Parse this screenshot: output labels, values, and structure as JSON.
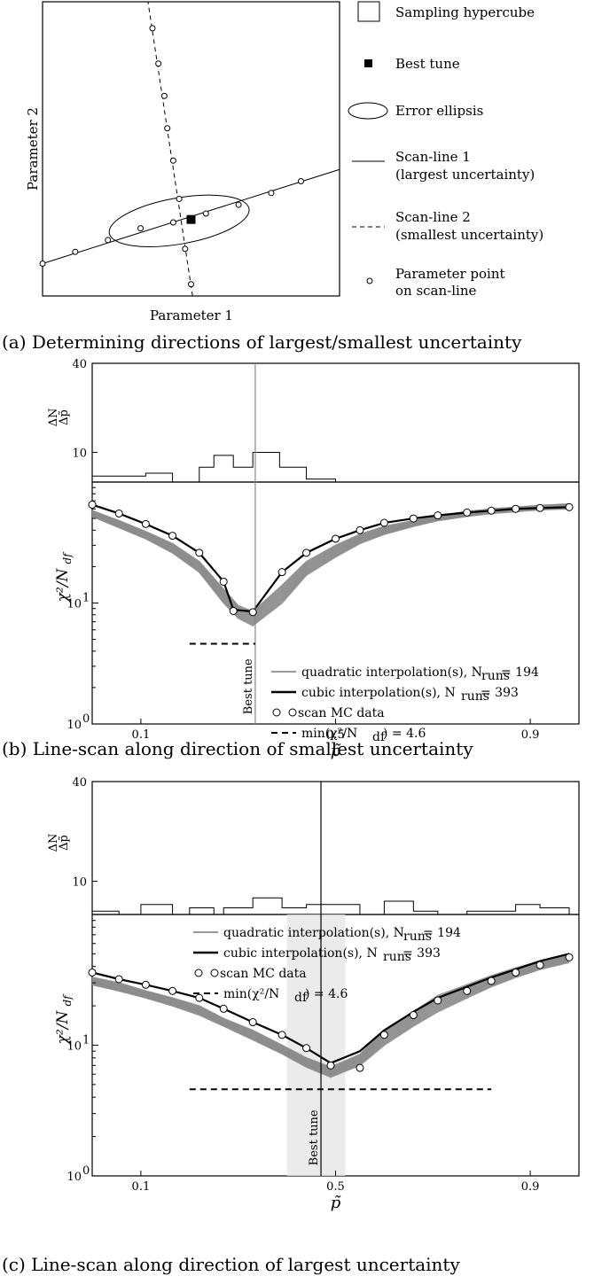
{
  "panel_a": {
    "caption": "(a) Determining directions of largest/smallest uncertainty",
    "xlabel": "Parameter 1",
    "ylabel": "Parameter 2",
    "legend": {
      "hypercube": "Sampling hypercube",
      "best_tune": "Best tune",
      "ellipse": "Error ellipsis",
      "scan1_l1": "Scan-line 1",
      "scan1_l2": "(largest uncertainty)",
      "scan2_l1": "Scan-line 2",
      "scan2_l2": "(smallest uncertainty)",
      "point_l1": "Parameter point",
      "point_l2": "on scan-line"
    }
  },
  "panel_b": {
    "caption": "(b) Line-scan along direction of smallest uncertainty",
    "best_tune_label": "Best tune",
    "hist_ylabel": "ΔN/Δp̃",
    "legend": {
      "quad": "quadratic interpolation(s), N",
      "quad_sub": "runs",
      "quad_val": " = 194",
      "cubic": "cubic interpolation(s), N",
      "cubic_sub": "runs",
      "cubic_val": " = 393",
      "data": "scan MC data",
      "min": "min(χ²/N",
      "min_sub": "df",
      "min_val": ") = 4.6"
    }
  },
  "panel_c": {
    "caption": "(c) Line-scan along direction of largest uncertainty",
    "best_tune_label": "Best tune",
    "legend": {
      "quad": "quadratic interpolation(s), N",
      "quad_sub": "runs",
      "quad_val": " = 194",
      "cubic": "cubic interpolation(s), N",
      "cubic_sub": "runs",
      "cubic_val": " = 393",
      "data": "scan MC data",
      "min": "min(χ²/N",
      "min_sub": "df",
      "min_val": ") = 4.6"
    }
  },
  "chart_data": [
    {
      "type": "scatter",
      "panel": "a",
      "xlabel": "Parameter 1",
      "ylabel": "Parameter 2",
      "best_tune": [
        0.5,
        0.26
      ],
      "scan_line_1_points": [
        [
          0.0,
          0.11
        ],
        [
          0.11,
          0.15
        ],
        [
          0.22,
          0.19
        ],
        [
          0.33,
          0.23
        ],
        [
          0.44,
          0.25
        ],
        [
          0.55,
          0.28
        ],
        [
          0.66,
          0.31
        ],
        [
          0.77,
          0.35
        ],
        [
          0.87,
          0.39
        ]
      ],
      "scan_line_2_points": [
        [
          0.5,
          0.04
        ],
        [
          0.48,
          0.16
        ],
        [
          0.46,
          0.33
        ],
        [
          0.44,
          0.46
        ],
        [
          0.42,
          0.57
        ],
        [
          0.41,
          0.68
        ],
        [
          0.39,
          0.79
        ],
        [
          0.37,
          0.91
        ]
      ]
    },
    {
      "type": "line",
      "panel": "b",
      "xlabel": "p̃",
      "ylabel": "χ²/N_df",
      "y_scale": "log",
      "xlim": [
        0.0,
        1.0
      ],
      "ylim": [
        1,
        100
      ],
      "x_ticks": [
        "0.1",
        "0.5",
        "0.9"
      ],
      "y_ticks": [
        "10⁰",
        "10¹"
      ],
      "best_tune_x": 0.335,
      "min_chi2": 4.6,
      "min_line_x": [
        0.2,
        0.335
      ],
      "scan_mc_data": {
        "x": [
          0.0,
          0.055,
          0.11,
          0.165,
          0.22,
          0.27,
          0.29,
          0.33,
          0.39,
          0.44,
          0.5,
          0.55,
          0.6,
          0.66,
          0.71,
          0.77,
          0.82,
          0.87,
          0.92,
          0.98
        ],
        "y": [
          65,
          55,
          45,
          36,
          26,
          15,
          8.6,
          8.4,
          18,
          26,
          34,
          40,
          46,
          50,
          53,
          56,
          58,
          60,
          61,
          62
        ]
      },
      "cubic": {
        "x": [
          0.0,
          0.055,
          0.11,
          0.165,
          0.22,
          0.27,
          0.29,
          0.33,
          0.39,
          0.44,
          0.5,
          0.55,
          0.6,
          0.66,
          0.71,
          0.77,
          0.82,
          0.87,
          0.92,
          0.98
        ],
        "y": [
          65,
          55,
          45,
          36,
          26,
          15,
          8.8,
          8.5,
          18,
          26,
          34,
          40,
          46,
          50,
          53,
          56,
          58,
          60,
          61,
          62
        ]
      },
      "quadratic_band": {
        "x": [
          0.0,
          0.055,
          0.11,
          0.165,
          0.22,
          0.27,
          0.3,
          0.33,
          0.39,
          0.44,
          0.5,
          0.55,
          0.6,
          0.66,
          0.71,
          0.77,
          0.82,
          0.87,
          0.92,
          0.98
        ],
        "y_low": [
          52,
          42,
          34,
          26,
          18,
          10,
          7.5,
          6.5,
          10,
          17,
          24,
          31,
          37,
          43,
          48,
          52,
          55,
          57,
          59,
          60
        ],
        "y_high": [
          58,
          48,
          39,
          31,
          22,
          13,
          9.5,
          8.5,
          14,
          22,
          30,
          37,
          43,
          48,
          53,
          57,
          60,
          62,
          64,
          66
        ]
      },
      "histogram": {
        "ylim": [
          0,
          40
        ],
        "y_ticks": [
          "10",
          "40"
        ],
        "bins": [
          [
            0.0,
            0.11,
            2
          ],
          [
            0.11,
            0.165,
            3
          ],
          [
            0.165,
            0.22,
            0
          ],
          [
            0.22,
            0.25,
            5
          ],
          [
            0.25,
            0.29,
            9
          ],
          [
            0.29,
            0.33,
            5
          ],
          [
            0.33,
            0.385,
            10
          ],
          [
            0.385,
            0.44,
            5
          ],
          [
            0.44,
            0.5,
            1
          ]
        ]
      }
    },
    {
      "type": "line",
      "panel": "c",
      "xlabel": "p̃",
      "ylabel": "χ²/N_df",
      "y_scale": "log",
      "xlim": [
        0.0,
        1.0
      ],
      "ylim": [
        1,
        100
      ],
      "x_ticks": [
        "0.1",
        "0.5",
        "0.9"
      ],
      "y_ticks": [
        "10⁰",
        "10¹"
      ],
      "best_tune_x": 0.47,
      "best_tune_band": [
        0.4,
        0.52
      ],
      "min_chi2": 4.6,
      "min_line_x": [
        0.2,
        0.82
      ],
      "scan_mc_data": {
        "x": [
          0.0,
          0.055,
          0.11,
          0.165,
          0.22,
          0.27,
          0.33,
          0.39,
          0.44,
          0.49,
          0.55,
          0.6,
          0.66,
          0.71,
          0.77,
          0.82,
          0.87,
          0.92,
          0.98
        ],
        "y": [
          36,
          32,
          29,
          26,
          23,
          19,
          15,
          12,
          9.5,
          7.0,
          6.7,
          12,
          17,
          22,
          26,
          31,
          36,
          41,
          47
        ]
      },
      "cubic": {
        "x": [
          0.0,
          0.055,
          0.11,
          0.165,
          0.22,
          0.27,
          0.33,
          0.39,
          0.44,
          0.49,
          0.55,
          0.6,
          0.66,
          0.71,
          0.77,
          0.82,
          0.87,
          0.92,
          0.98
        ],
        "y": [
          36,
          32,
          29,
          26,
          23,
          19,
          15,
          12,
          9.5,
          7.3,
          9.0,
          13,
          18,
          23,
          28,
          33,
          38,
          44,
          50
        ]
      },
      "quadratic_band": {
        "x": [
          0.0,
          0.055,
          0.11,
          0.165,
          0.22,
          0.27,
          0.33,
          0.39,
          0.44,
          0.49,
          0.55,
          0.6,
          0.66,
          0.71,
          0.77,
          0.82,
          0.87,
          0.92,
          0.98
        ],
        "y_low": [
          29,
          26,
          23,
          20,
          17,
          14,
          11,
          8.6,
          6.8,
          5.7,
          7.0,
          10,
          14,
          18,
          23,
          28,
          33,
          38,
          43
        ],
        "y_high": [
          33,
          30,
          26,
          23,
          20,
          16,
          13,
          10,
          8.0,
          6.8,
          8.5,
          13,
          18,
          24,
          29,
          34,
          39,
          44,
          50
        ]
      },
      "histogram": {
        "ylim": [
          0,
          40
        ],
        "y_ticks": [
          "10",
          "40"
        ],
        "bins": [
          [
            0.0,
            0.055,
            1
          ],
          [
            0.055,
            0.1,
            0
          ],
          [
            0.1,
            0.165,
            3
          ],
          [
            0.165,
            0.2,
            0
          ],
          [
            0.2,
            0.25,
            2
          ],
          [
            0.25,
            0.27,
            0
          ],
          [
            0.27,
            0.33,
            2
          ],
          [
            0.33,
            0.39,
            5
          ],
          [
            0.39,
            0.44,
            2
          ],
          [
            0.44,
            0.55,
            3
          ],
          [
            0.55,
            0.6,
            0
          ],
          [
            0.6,
            0.66,
            4
          ],
          [
            0.66,
            0.71,
            1
          ],
          [
            0.71,
            0.77,
            0
          ],
          [
            0.77,
            0.87,
            1
          ],
          [
            0.87,
            0.92,
            3
          ],
          [
            0.92,
            0.98,
            2
          ]
        ]
      }
    }
  ]
}
